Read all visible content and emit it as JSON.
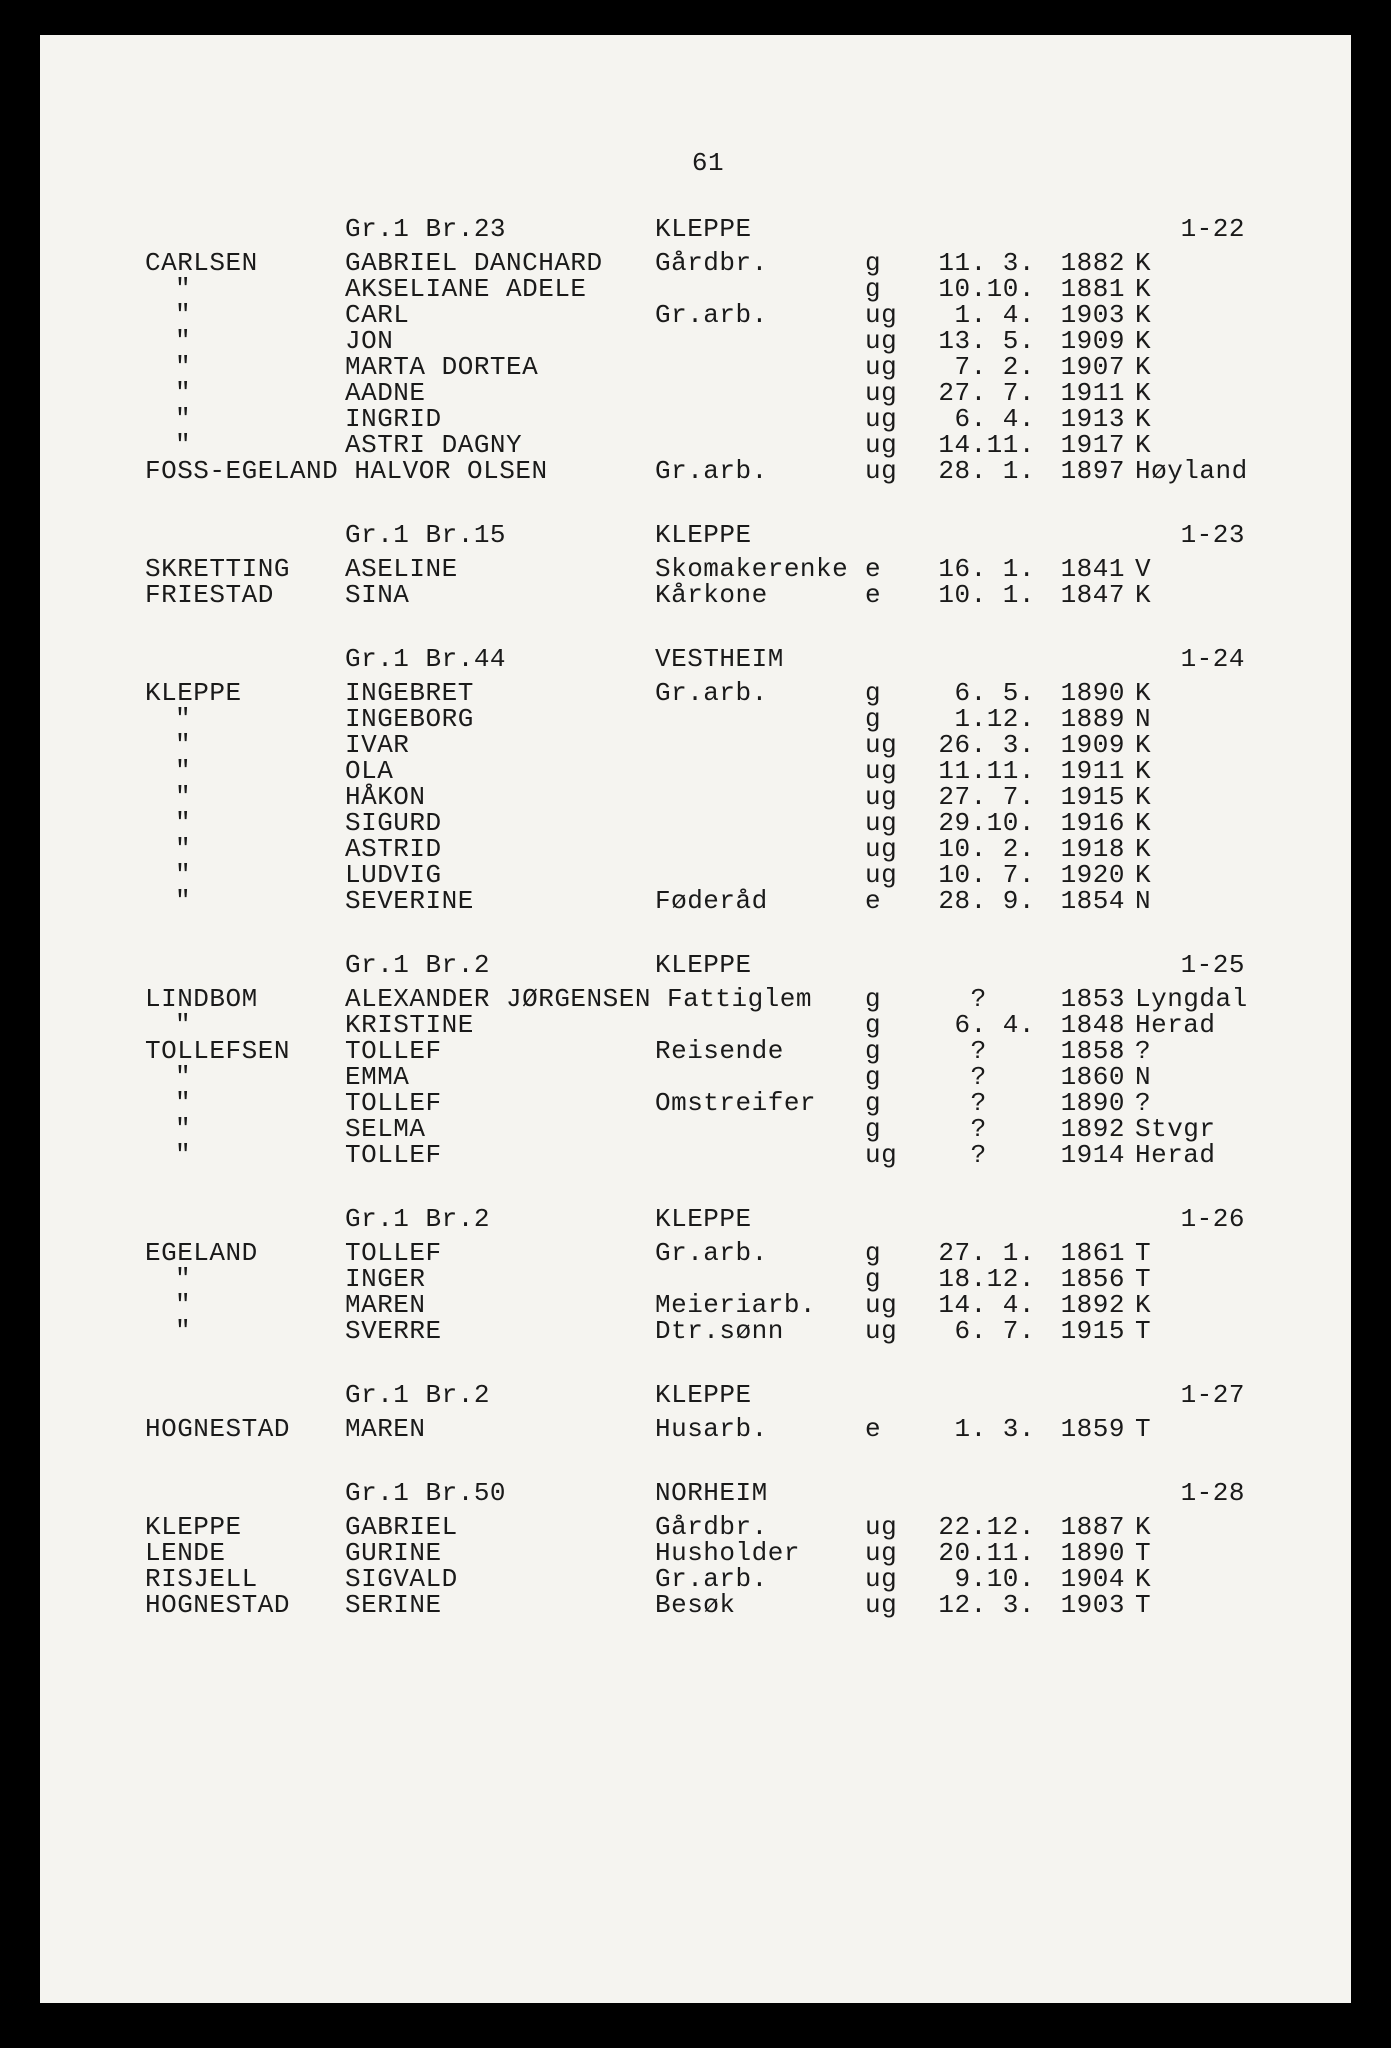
{
  "page_number": "61",
  "text_color": "#1a1a1a",
  "background_color": "#f5f4f0",
  "font_family": "Courier New",
  "font_size_pt": 20,
  "sections": [
    {
      "header": {
        "farm": "Gr.1 Br.23",
        "name": "KLEPPE",
        "ref": "1-22"
      },
      "rows": [
        {
          "surname": "CARLSEN",
          "given": "GABRIEL DANCHARD",
          "occ": "Gårdbr.",
          "ms": "g",
          "date": "11. 3.",
          "year": "1882",
          "place": "K"
        },
        {
          "surname": "\"",
          "given": "AKSELIANE ADELE",
          "occ": "",
          "ms": "g",
          "date": "10.10.",
          "year": "1881",
          "place": "K"
        },
        {
          "surname": "\"",
          "given": "CARL",
          "occ": "Gr.arb.",
          "ms": "ug",
          "date": "1. 4.",
          "year": "1903",
          "place": "K"
        },
        {
          "surname": "\"",
          "given": "JON",
          "occ": "",
          "ms": "ug",
          "date": "13. 5.",
          "year": "1909",
          "place": "K"
        },
        {
          "surname": "\"",
          "given": "MARTA DORTEA",
          "occ": "",
          "ms": "ug",
          "date": "7. 2.",
          "year": "1907",
          "place": "K"
        },
        {
          "surname": "\"",
          "given": "AADNE",
          "occ": "",
          "ms": "ug",
          "date": "27. 7.",
          "year": "1911",
          "place": "K"
        },
        {
          "surname": "\"",
          "given": "INGRID",
          "occ": "",
          "ms": "ug",
          "date": "6. 4.",
          "year": "1913",
          "place": "K"
        },
        {
          "surname": "\"",
          "given": "ASTRI DAGNY",
          "occ": "",
          "ms": "ug",
          "date": "14.11.",
          "year": "1917",
          "place": "K"
        },
        {
          "surname": "FOSS-EGELAND",
          "given": "HALVOR OLSEN",
          "occ": "Gr.arb.",
          "ms": "ug",
          "date": "28. 1.",
          "year": "1897",
          "place": "Høyland",
          "span": true
        }
      ]
    },
    {
      "header": {
        "farm": "Gr.1 Br.15",
        "name": "KLEPPE",
        "ref": "1-23"
      },
      "rows": [
        {
          "surname": "SKRETTING",
          "given": "ASELINE",
          "occ": "Skomakerenke",
          "ms": "e",
          "date": "16. 1.",
          "year": "1841",
          "place": "V"
        },
        {
          "surname": "FRIESTAD",
          "given": "SINA",
          "occ": "Kårkone",
          "ms": "e",
          "date": "10. 1.",
          "year": "1847",
          "place": "K"
        }
      ]
    },
    {
      "header": {
        "farm": "Gr.1 Br.44",
        "name": "VESTHEIM",
        "ref": "1-24"
      },
      "rows": [
        {
          "surname": "KLEPPE",
          "given": "INGEBRET",
          "occ": "Gr.arb.",
          "ms": "g",
          "date": "6. 5.",
          "year": "1890",
          "place": "K"
        },
        {
          "surname": "\"",
          "given": "INGEBORG",
          "occ": "",
          "ms": "g",
          "date": "1.12.",
          "year": "1889",
          "place": "N"
        },
        {
          "surname": "\"",
          "given": "IVAR",
          "occ": "",
          "ms": "ug",
          "date": "26. 3.",
          "year": "1909",
          "place": "K"
        },
        {
          "surname": "\"",
          "given": "OLA",
          "occ": "",
          "ms": "ug",
          "date": "11.11.",
          "year": "1911",
          "place": "K"
        },
        {
          "surname": "\"",
          "given": "HÅKON",
          "occ": "",
          "ms": "ug",
          "date": "27. 7.",
          "year": "1915",
          "place": "K"
        },
        {
          "surname": "\"",
          "given": "SIGURD",
          "occ": "",
          "ms": "ug",
          "date": "29.10.",
          "year": "1916",
          "place": "K"
        },
        {
          "surname": "\"",
          "given": "ASTRID",
          "occ": "",
          "ms": "ug",
          "date": "10. 2.",
          "year": "1918",
          "place": "K"
        },
        {
          "surname": "\"",
          "given": "LUDVIG",
          "occ": "",
          "ms": "ug",
          "date": "10. 7.",
          "year": "1920",
          "place": "K"
        },
        {
          "surname": "\"",
          "given": "SEVERINE",
          "occ": "Føderåd",
          "ms": "e",
          "date": "28. 9.",
          "year": "1854",
          "place": "N"
        }
      ]
    },
    {
      "header": {
        "farm": "Gr.1 Br.2",
        "name": "KLEPPE",
        "ref": "1-25"
      },
      "rows": [
        {
          "surname": "LINDBOM",
          "given": "ALEXANDER JØRGENSEN",
          "occ": "Fattiglem",
          "ms": "g",
          "date": "?   ",
          "year": "1853",
          "place": "Lyngdal",
          "tight": true
        },
        {
          "surname": "\"",
          "given": "KRISTINE",
          "occ": "",
          "ms": "g",
          "date": "6. 4.",
          "year": "1848",
          "place": "Herad"
        },
        {
          "surname": "TOLLEFSEN",
          "given": "TOLLEF",
          "occ": "Reisende",
          "ms": "g",
          "date": "?   ",
          "year": "1858",
          "place": "?"
        },
        {
          "surname": "\"",
          "given": "EMMA",
          "occ": "",
          "ms": "g",
          "date": "?   ",
          "year": "1860",
          "place": "N"
        },
        {
          "surname": "\"",
          "given": "TOLLEF",
          "occ": "Omstreifer",
          "ms": "g",
          "date": "?   ",
          "year": "1890",
          "place": "?"
        },
        {
          "surname": "\"",
          "given": "SELMA",
          "occ": "",
          "ms": "g",
          "date": "?   ",
          "year": "1892",
          "place": "Stvgr"
        },
        {
          "surname": "\"",
          "given": "TOLLEF",
          "occ": "",
          "ms": "ug",
          "date": "?   ",
          "year": "1914",
          "place": "Herad"
        }
      ]
    },
    {
      "header": {
        "farm": "Gr.1 Br.2",
        "name": "KLEPPE",
        "ref": "1-26"
      },
      "rows": [
        {
          "surname": "EGELAND",
          "given": "TOLLEF",
          "occ": "Gr.arb.",
          "ms": "g",
          "date": "27. 1.",
          "year": "1861",
          "place": "T"
        },
        {
          "surname": "\"",
          "given": "INGER",
          "occ": "",
          "ms": "g",
          "date": "18.12.",
          "year": "1856",
          "place": "T"
        },
        {
          "surname": "\"",
          "given": "MAREN",
          "occ": "Meieriarb.",
          "ms": "ug",
          "date": "14. 4.",
          "year": "1892",
          "place": "K"
        },
        {
          "surname": "\"",
          "given": "SVERRE",
          "occ": "Dtr.sønn",
          "ms": "ug",
          "date": "6. 7.",
          "year": "1915",
          "place": "T"
        }
      ]
    },
    {
      "header": {
        "farm": "Gr.1 Br.2",
        "name": "KLEPPE",
        "ref": "1-27"
      },
      "rows": [
        {
          "surname": "HOGNESTAD",
          "given": "MAREN",
          "occ": "Husarb.",
          "ms": "e",
          "date": "1. 3.",
          "year": "1859",
          "place": "T"
        }
      ]
    },
    {
      "header": {
        "farm": "Gr.1 Br.50",
        "name": "NORHEIM",
        "ref": "1-28"
      },
      "rows": [
        {
          "surname": "KLEPPE",
          "given": "GABRIEL",
          "occ": "Gårdbr.",
          "ms": "ug",
          "date": "22.12.",
          "year": "1887",
          "place": "K"
        },
        {
          "surname": "LENDE",
          "given": "GURINE",
          "occ": "Husholder",
          "ms": "ug",
          "date": "20.11.",
          "year": "1890",
          "place": "T"
        },
        {
          "surname": "RISJELL",
          "given": "SIGVALD",
          "occ": "Gr.arb.",
          "ms": "ug",
          "date": "9.10.",
          "year": "1904",
          "place": "K"
        },
        {
          "surname": "HOGNESTAD",
          "given": "SERINE",
          "occ": "Besøk",
          "ms": "ug",
          "date": "12. 3.",
          "year": "1903",
          "place": "T"
        }
      ]
    }
  ]
}
